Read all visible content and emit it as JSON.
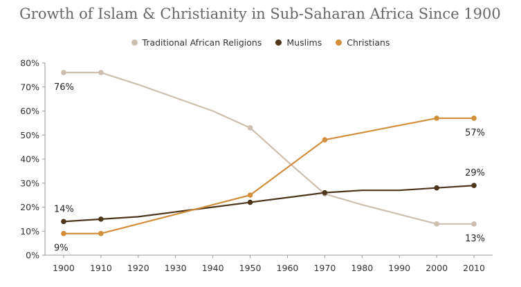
{
  "chart_data": {
    "type": "line",
    "title": "Growth of Islam & Christianity in Sub-Saharan Africa Since 1900",
    "xlabel": "",
    "ylabel": "",
    "x_ticks": [
      "1900",
      "1910",
      "1920",
      "1930",
      "1940",
      "1950",
      "1960",
      "1970",
      "1980",
      "1990",
      "2000",
      "2010"
    ],
    "y_ticks": [
      "0%",
      "10%",
      "20%",
      "30%",
      "40%",
      "50%",
      "60%",
      "70%",
      "80%"
    ],
    "ylim": [
      0,
      80
    ],
    "xlim": [
      1895,
      2015
    ],
    "grid": false,
    "legend_position": "top-center",
    "series": [
      {
        "name": "Traditional African Religions",
        "color": "#cdbfb0",
        "points": [
          [
            1900,
            76
          ],
          [
            1910,
            76
          ],
          [
            1920,
            71
          ],
          [
            1930,
            65.5
          ],
          [
            1940,
            60
          ],
          [
            1950,
            53
          ],
          [
            1960,
            39
          ],
          [
            1970,
            25.5
          ],
          [
            1980,
            21
          ],
          [
            1990,
            17
          ],
          [
            2000,
            13
          ],
          [
            2010,
            13
          ]
        ],
        "markers": [
          [
            1900,
            76
          ],
          [
            1910,
            76
          ],
          [
            1950,
            53
          ],
          [
            1970,
            25.5
          ],
          [
            2000,
            13
          ],
          [
            2010,
            13
          ]
        ]
      },
      {
        "name": "Muslims",
        "color": "#4d3519",
        "points": [
          [
            1900,
            14
          ],
          [
            1910,
            15
          ],
          [
            1920,
            16
          ],
          [
            1930,
            18
          ],
          [
            1940,
            20
          ],
          [
            1950,
            22
          ],
          [
            1960,
            24
          ],
          [
            1970,
            26
          ],
          [
            1980,
            27
          ],
          [
            1990,
            27
          ],
          [
            2000,
            28
          ],
          [
            2010,
            29
          ]
        ],
        "markers": [
          [
            1900,
            14
          ],
          [
            1910,
            15
          ],
          [
            1950,
            22
          ],
          [
            1970,
            26
          ],
          [
            2000,
            28
          ],
          [
            2010,
            29
          ]
        ]
      },
      {
        "name": "Christians",
        "color": "#d18e3b",
        "points": [
          [
            1900,
            9
          ],
          [
            1910,
            9
          ],
          [
            1920,
            13
          ],
          [
            1930,
            17
          ],
          [
            1940,
            21
          ],
          [
            1950,
            25
          ],
          [
            1960,
            36.5
          ],
          [
            1970,
            48
          ],
          [
            1980,
            51
          ],
          [
            1990,
            54
          ],
          [
            2000,
            57
          ],
          [
            2010,
            57
          ]
        ],
        "markers": [
          [
            1900,
            9
          ],
          [
            1910,
            9
          ],
          [
            1950,
            25
          ],
          [
            1970,
            48
          ],
          [
            2000,
            57
          ],
          [
            2010,
            57
          ]
        ]
      }
    ],
    "annotations": [
      {
        "text": "76%",
        "x": 1900,
        "y": 76,
        "anchor": "below"
      },
      {
        "text": "14%",
        "x": 1900,
        "y": 14,
        "anchor": "above"
      },
      {
        "text": "9%",
        "x": 1900,
        "y": 9,
        "anchor": "below"
      },
      {
        "text": "57%",
        "x": 2010,
        "y": 57,
        "anchor": "below"
      },
      {
        "text": "29%",
        "x": 2010,
        "y": 29,
        "anchor": "above"
      },
      {
        "text": "13%",
        "x": 2010,
        "y": 13,
        "anchor": "below"
      }
    ]
  }
}
